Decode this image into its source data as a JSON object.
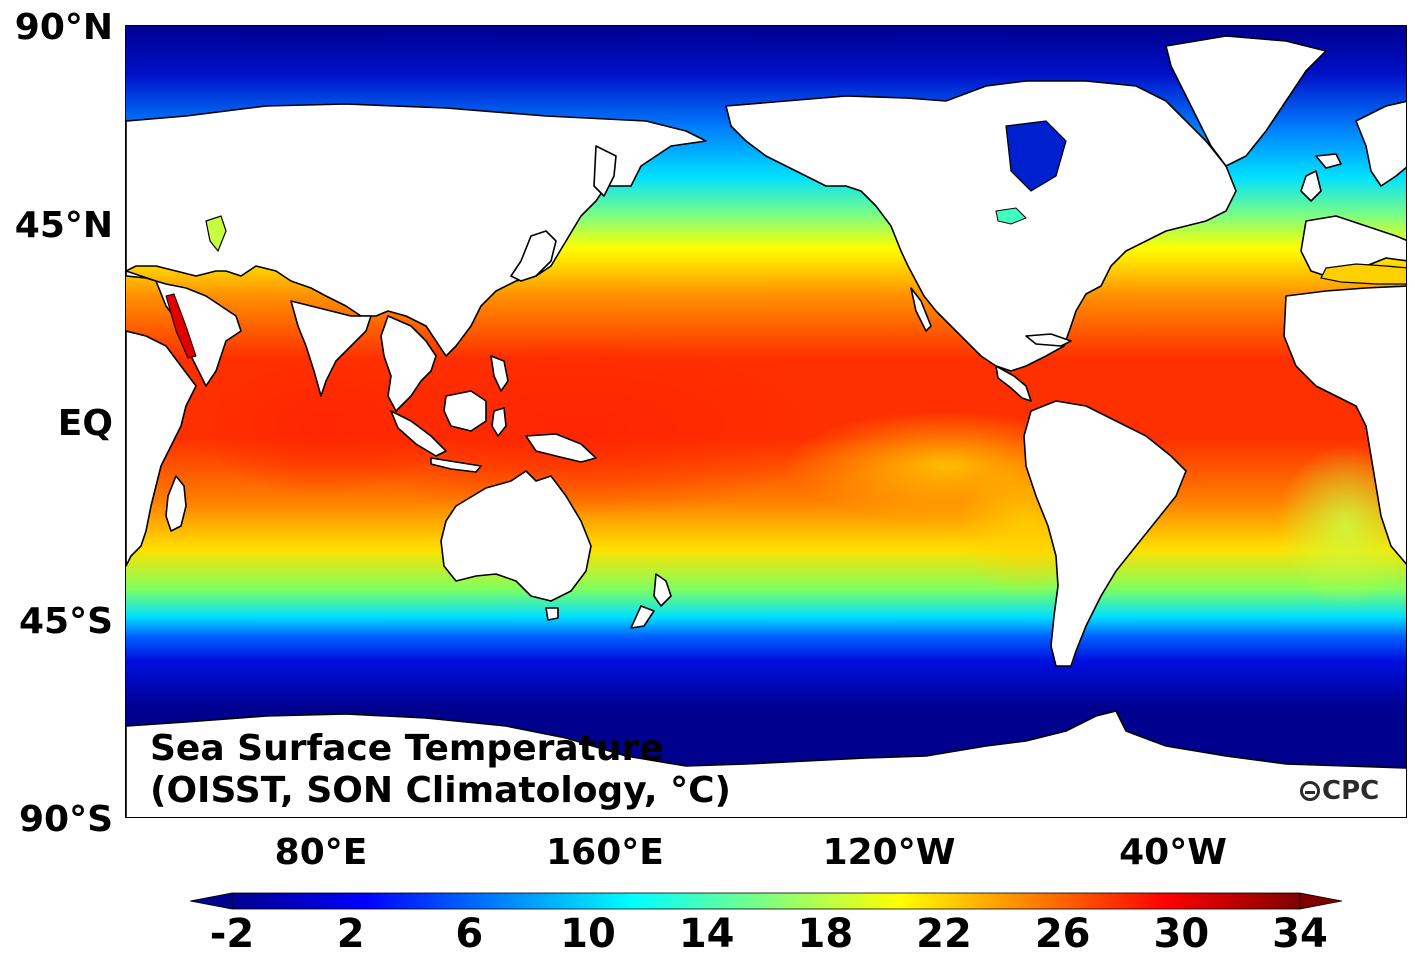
{
  "map": {
    "title_line1": "Sea Surface Temperature",
    "title_line2": "(OISST, SON Climatology, °C)",
    "logo_text": "CPC",
    "lat_labels": [
      "90°N",
      "45°N",
      "EQ",
      "45°S",
      "90°S"
    ],
    "lon_labels": [
      "80°E",
      "160°E",
      "120°W",
      "40°W"
    ]
  },
  "colorbar": {
    "ticks": [
      "-2",
      "2",
      "6",
      "10",
      "14",
      "18",
      "22",
      "26",
      "30",
      "34"
    ],
    "min": -2,
    "max": 34,
    "colormap": [
      "#00008f",
      "#0000ff",
      "#0080ff",
      "#00ffff",
      "#80ff80",
      "#ffff00",
      "#ff8000",
      "#ff0000",
      "#800000"
    ]
  }
}
